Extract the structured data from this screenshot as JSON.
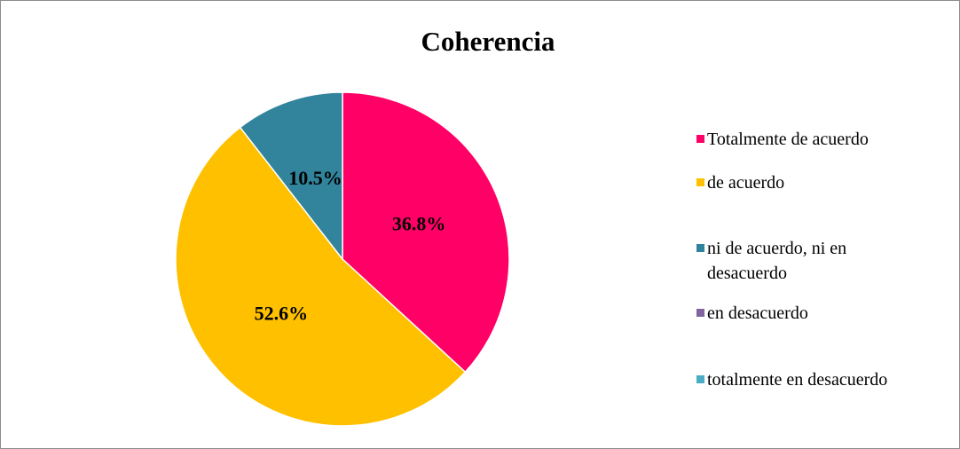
{
  "chart_data": {
    "type": "pie",
    "title": "Coherencia",
    "categories": [
      "Totalmente de acuerdo",
      "de acuerdo",
      "ni de acuerdo, ni en desacuerdo",
      "en desacuerdo",
      "totalmente en desacuerdo"
    ],
    "values": [
      36.8,
      52.6,
      10.5,
      0,
      0
    ],
    "value_labels": [
      "36.8%",
      "52.6%",
      "10.5%",
      null,
      null
    ],
    "colors": [
      "#ff0066",
      "#ffc000",
      "#31849b",
      "#8064a2",
      "#4bacc6"
    ],
    "legend": "right"
  }
}
